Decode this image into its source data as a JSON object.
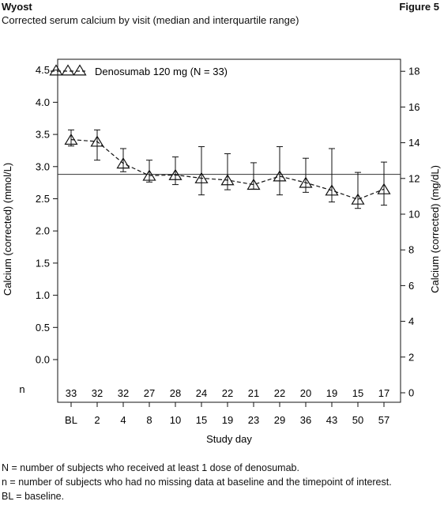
{
  "header": {
    "left": "Wyost",
    "right": "Figure 5",
    "subtitle": "Corrected serum calcium by visit (median and interquartile range)"
  },
  "chart_data": {
    "type": "line",
    "xlabel": "Study day",
    "ylabel_left": "Calcium (corrected) (mmol/L)",
    "ylabel_right": "Calcium (corrected) (mg/dL)",
    "categories": [
      "BL",
      "2",
      "4",
      "8",
      "10",
      "15",
      "19",
      "23",
      "29",
      "36",
      "43",
      "50",
      "57"
    ],
    "left_ticks": [
      "4.5",
      "4.0",
      "3.5",
      "3.0",
      "2.5",
      "2.0",
      "1.5",
      "1.0",
      "0.5",
      "0.0"
    ],
    "right_ticks": [
      "18",
      "16",
      "14",
      "12",
      "10",
      "8",
      "6",
      "4",
      "2",
      "0"
    ],
    "ylim_left": [
      0,
      4.5
    ],
    "reference_line": 2.88,
    "n_label": "n",
    "n_values": [
      "33",
      "32",
      "32",
      "27",
      "28",
      "24",
      "22",
      "21",
      "22",
      "20",
      "19",
      "15",
      "17"
    ],
    "series": [
      {
        "name": "Denosumab 120 mg (N = 33)",
        "median": [
          3.42,
          3.39,
          3.05,
          2.86,
          2.87,
          2.82,
          2.79,
          2.72,
          2.85,
          2.75,
          2.63,
          2.49,
          2.65
        ],
        "q1": [
          3.32,
          3.1,
          2.92,
          2.76,
          2.72,
          2.56,
          2.64,
          2.65,
          2.56,
          2.6,
          2.45,
          2.35,
          2.4
        ],
        "q3": [
          3.57,
          3.57,
          3.28,
          3.1,
          3.15,
          3.31,
          3.2,
          3.06,
          3.31,
          3.13,
          3.28,
          2.91,
          3.07
        ]
      }
    ],
    "legend_placement": "top-left",
    "grid": false
  },
  "footnotes": [
    "N = number of subjects who received at least 1 dose of denosumab.",
    "n = number of subjects who had no missing data at baseline and the timepoint of interest.",
    "BL = baseline."
  ]
}
